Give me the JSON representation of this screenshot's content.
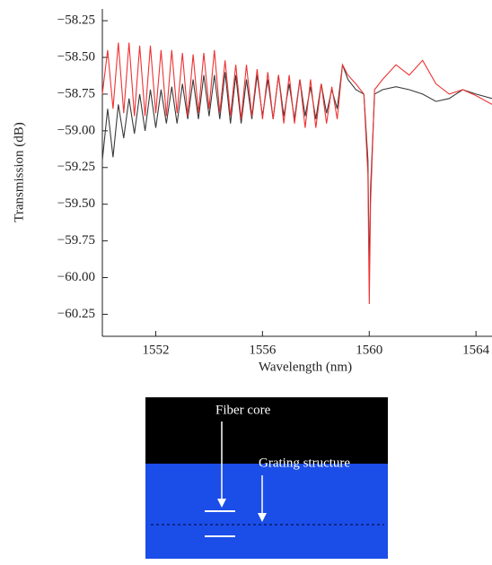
{
  "chart_data": {
    "type": "line",
    "x_label": "Wavelength (nm)",
    "y_label": "Transmission (dB)",
    "x": [
      1550.0,
      1550.2,
      1550.4,
      1550.6,
      1550.8,
      1551.0,
      1551.2,
      1551.4,
      1551.6,
      1551.8,
      1552.0,
      1552.2,
      1552.4,
      1552.6,
      1552.8,
      1553.0,
      1553.2,
      1553.4,
      1553.6,
      1553.8,
      1554.0,
      1554.2,
      1554.4,
      1554.6,
      1554.8,
      1555.0,
      1555.2,
      1555.4,
      1555.6,
      1555.8,
      1556.0,
      1556.2,
      1556.4,
      1556.6,
      1556.8,
      1557.0,
      1557.2,
      1557.4,
      1557.6,
      1557.8,
      1558.0,
      1558.2,
      1558.4,
      1558.6,
      1558.8,
      1559.0,
      1559.2,
      1559.5,
      1559.8,
      1559.95,
      1560.0,
      1560.05,
      1560.2,
      1560.5,
      1561.0,
      1561.5,
      1562.0,
      1562.5,
      1563.0,
      1563.5,
      1564.0,
      1564.6
    ],
    "series": [
      {
        "color": "#3a3a3a",
        "values": [
          -59.2,
          -58.85,
          -59.18,
          -58.82,
          -59.05,
          -58.78,
          -59.02,
          -58.75,
          -59.0,
          -58.72,
          -58.98,
          -58.72,
          -58.95,
          -58.7,
          -58.95,
          -58.68,
          -58.92,
          -58.65,
          -58.92,
          -58.62,
          -58.9,
          -58.62,
          -58.92,
          -58.6,
          -58.95,
          -58.62,
          -58.95,
          -58.65,
          -58.92,
          -58.62,
          -58.9,
          -58.65,
          -58.92,
          -58.62,
          -58.9,
          -58.68,
          -58.92,
          -58.65,
          -58.9,
          -58.7,
          -58.92,
          -58.68,
          -58.88,
          -58.72,
          -58.85,
          -58.55,
          -58.65,
          -58.72,
          -58.75,
          -59.2,
          -60.0,
          -59.4,
          -58.75,
          -58.72,
          -58.7,
          -58.72,
          -58.75,
          -58.8,
          -58.78,
          -58.72,
          -58.75,
          -58.78
        ]
      },
      {
        "color": "#ee3333",
        "values": [
          -58.75,
          -58.45,
          -58.85,
          -58.4,
          -58.88,
          -58.4,
          -58.9,
          -58.42,
          -58.9,
          -58.42,
          -58.88,
          -58.45,
          -58.9,
          -58.45,
          -58.88,
          -58.47,
          -58.9,
          -58.48,
          -58.88,
          -58.47,
          -58.85,
          -58.45,
          -58.88,
          -58.52,
          -58.9,
          -58.55,
          -58.92,
          -58.55,
          -58.9,
          -58.58,
          -58.92,
          -58.6,
          -58.92,
          -58.62,
          -58.95,
          -58.62,
          -58.95,
          -58.65,
          -58.98,
          -58.65,
          -58.98,
          -58.68,
          -58.95,
          -58.7,
          -58.92,
          -58.55,
          -58.62,
          -58.68,
          -58.75,
          -59.3,
          -60.18,
          -59.5,
          -58.72,
          -58.65,
          -58.55,
          -58.62,
          -58.52,
          -58.68,
          -58.75,
          -58.72,
          -58.76,
          -58.82
        ]
      }
    ],
    "xlim": [
      1550.0,
      1564.6
    ],
    "ylim": [
      -60.4,
      -58.17
    ],
    "xticks": [
      1552,
      1556,
      1560,
      1564
    ],
    "yticks": [
      {
        "value": -58.25,
        "label": "−58.25"
      },
      {
        "value": -58.5,
        "label": "−58.50"
      },
      {
        "value": -58.75,
        "label": "−58.75"
      },
      {
        "value": -59.0,
        "label": "−59.00"
      },
      {
        "value": -59.25,
        "label": "−59.25"
      },
      {
        "value": -59.5,
        "label": "−59.50"
      },
      {
        "value": -59.75,
        "label": "−59.75"
      },
      {
        "value": -60.0,
        "label": "−60.00"
      },
      {
        "value": -60.25,
        "label": "−60.25"
      }
    ]
  },
  "image": {
    "labels": [
      "Fiber core",
      "Grating structure"
    ]
  }
}
